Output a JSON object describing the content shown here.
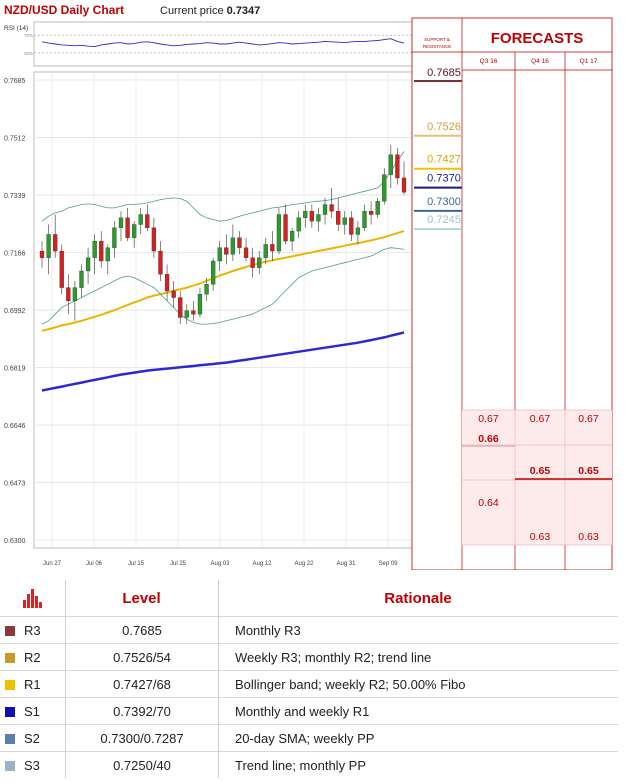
{
  "header": {
    "chart_title": "NZD/USD Daily Chart",
    "current_price_label": "Current price",
    "current_price_value": "0.7347",
    "rsi_label": "RSI (14)",
    "rsi_levels": [
      "70%",
      "30%"
    ]
  },
  "side_panel": {
    "sr_title_line1": "SUPPORT &",
    "sr_title_line2": "RESISTANCE",
    "forecasts_title": "FORECASTS",
    "columns": [
      "Q3 16",
      "Q4 16",
      "Q1 17"
    ],
    "sr_levels": [
      {
        "value": 0.7685,
        "label": "0.7685",
        "color": "#7b2e36",
        "text_color": "#5a1420"
      },
      {
        "value": 0.7526,
        "label": "0.7526",
        "color": "#e8c070",
        "text_color": "#d4a02a"
      },
      {
        "value": 0.7427,
        "label": "0.7427",
        "color": "#f2c000",
        "text_color": "#d8a800"
      },
      {
        "value": 0.737,
        "label": "0.7370",
        "color": "#1a1a8c",
        "text_color": "#1a1a8c"
      },
      {
        "value": 0.73,
        "label": "0.7300",
        "color": "#3a6a9a",
        "text_color": "#3a6a9a"
      },
      {
        "value": 0.7245,
        "label": "0.7245",
        "color": "#b0d4d8",
        "text_color": "#9ac4c8"
      }
    ],
    "forecasts": [
      {
        "column": 0,
        "values": [
          {
            "value": 0.67,
            "label": "0.67",
            "bold": false
          },
          {
            "value": 0.66,
            "label": "0.66",
            "bold": true
          },
          {
            "value": 0.64,
            "label": "0.64",
            "bold": false
          }
        ]
      },
      {
        "column": 1,
        "values": [
          {
            "value": 0.67,
            "label": "0.67",
            "bold": false
          },
          {
            "value": 0.65,
            "label": "0.65",
            "bold": true
          },
          {
            "value": 0.63,
            "label": "0.63",
            "bold": false
          }
        ]
      },
      {
        "column": 2,
        "values": [
          {
            "value": 0.67,
            "label": "0.67",
            "bold": false
          },
          {
            "value": 0.65,
            "label": "0.65",
            "bold": true
          },
          {
            "value": 0.63,
            "label": "0.63",
            "bold": false
          }
        ]
      }
    ]
  },
  "chart_data": {
    "type": "candlestick",
    "title": "NZD/USD Daily Chart",
    "y_ticks": [
      "0.7685",
      "0.7512",
      "0.7339",
      "0.7166",
      "0.6992",
      "0.6819",
      "0.6646",
      "0.6473",
      "0.6300"
    ],
    "ylim": [
      0.63,
      0.7685
    ],
    "x_ticks": [
      "Jun 27",
      "Jul 06",
      "Jul 15",
      "Jul 25",
      "Aug 03",
      "Aug 12",
      "Aug 22",
      "Aug 31",
      "Sep 09"
    ],
    "grid": true,
    "candles": [
      [
        0.717,
        0.72,
        0.712,
        0.715
      ],
      [
        0.715,
        0.725,
        0.71,
        0.722
      ],
      [
        0.722,
        0.728,
        0.715,
        0.717
      ],
      [
        0.717,
        0.719,
        0.704,
        0.706
      ],
      [
        0.706,
        0.71,
        0.698,
        0.702
      ],
      [
        0.702,
        0.708,
        0.696,
        0.706
      ],
      [
        0.706,
        0.713,
        0.703,
        0.711
      ],
      [
        0.711,
        0.718,
        0.707,
        0.715
      ],
      [
        0.715,
        0.722,
        0.71,
        0.72
      ],
      [
        0.72,
        0.723,
        0.712,
        0.714
      ],
      [
        0.714,
        0.719,
        0.71,
        0.718
      ],
      [
        0.718,
        0.726,
        0.715,
        0.724
      ],
      [
        0.724,
        0.729,
        0.72,
        0.727
      ],
      [
        0.727,
        0.73,
        0.72,
        0.721
      ],
      [
        0.721,
        0.726,
        0.718,
        0.725
      ],
      [
        0.725,
        0.73,
        0.722,
        0.728
      ],
      [
        0.728,
        0.731,
        0.723,
        0.724
      ],
      [
        0.724,
        0.727,
        0.715,
        0.717
      ],
      [
        0.717,
        0.72,
        0.708,
        0.71
      ],
      [
        0.71,
        0.713,
        0.702,
        0.705
      ],
      [
        0.705,
        0.708,
        0.7,
        0.703
      ],
      [
        0.703,
        0.705,
        0.695,
        0.697
      ],
      [
        0.697,
        0.701,
        0.695,
        0.699
      ],
      [
        0.699,
        0.702,
        0.696,
        0.698
      ],
      [
        0.698,
        0.706,
        0.697,
        0.704
      ],
      [
        0.704,
        0.709,
        0.702,
        0.707
      ],
      [
        0.707,
        0.715,
        0.705,
        0.714
      ],
      [
        0.714,
        0.72,
        0.711,
        0.718
      ],
      [
        0.718,
        0.722,
        0.713,
        0.716
      ],
      [
        0.716,
        0.725,
        0.714,
        0.721
      ],
      [
        0.721,
        0.723,
        0.716,
        0.718
      ],
      [
        0.718,
        0.721,
        0.714,
        0.715
      ],
      [
        0.715,
        0.718,
        0.709,
        0.712
      ],
      [
        0.712,
        0.717,
        0.71,
        0.715
      ],
      [
        0.715,
        0.721,
        0.713,
        0.719
      ],
      [
        0.719,
        0.723,
        0.714,
        0.717
      ],
      [
        0.717,
        0.73,
        0.716,
        0.728
      ],
      [
        0.728,
        0.731,
        0.719,
        0.72
      ],
      [
        0.72,
        0.724,
        0.717,
        0.723
      ],
      [
        0.723,
        0.729,
        0.721,
        0.727
      ],
      [
        0.727,
        0.731,
        0.724,
        0.729
      ],
      [
        0.729,
        0.731,
        0.724,
        0.726
      ],
      [
        0.726,
        0.73,
        0.723,
        0.728
      ],
      [
        0.728,
        0.733,
        0.725,
        0.731
      ],
      [
        0.731,
        0.736,
        0.727,
        0.729
      ],
      [
        0.729,
        0.733,
        0.723,
        0.725
      ],
      [
        0.725,
        0.729,
        0.722,
        0.727
      ],
      [
        0.727,
        0.729,
        0.72,
        0.722
      ],
      [
        0.722,
        0.726,
        0.719,
        0.724
      ],
      [
        0.724,
        0.731,
        0.723,
        0.729
      ],
      [
        0.729,
        0.732,
        0.725,
        0.728
      ],
      [
        0.728,
        0.733,
        0.727,
        0.732
      ],
      [
        0.732,
        0.742,
        0.731,
        0.74
      ],
      [
        0.74,
        0.749,
        0.736,
        0.746
      ],
      [
        0.746,
        0.748,
        0.737,
        0.739
      ],
      [
        0.739,
        0.744,
        0.734,
        0.7347
      ]
    ],
    "series": [
      {
        "type": "line",
        "color": "#f0b400",
        "values": [
          0.693,
          0.6935,
          0.694,
          0.6946,
          0.695,
          0.6955,
          0.696,
          0.6966,
          0.6972,
          0.6978,
          0.6985,
          0.6992,
          0.7,
          0.7008,
          0.7015,
          0.7022,
          0.703,
          0.7036,
          0.704,
          0.7045,
          0.705,
          0.7055,
          0.706,
          0.7066,
          0.7072,
          0.708,
          0.7088,
          0.7096,
          0.7103,
          0.711,
          0.7116,
          0.7122,
          0.7128,
          0.7133,
          0.7138,
          0.7142,
          0.7146,
          0.715,
          0.7154,
          0.7158,
          0.7162,
          0.7166,
          0.717,
          0.7174,
          0.7178,
          0.7182,
          0.7186,
          0.719,
          0.7194,
          0.7198,
          0.7202,
          0.7207,
          0.7212,
          0.7218,
          0.7224,
          0.723
        ]
      },
      {
        "type": "line",
        "color": "#2a2ad0",
        "values": [
          0.675,
          0.6754,
          0.6758,
          0.6762,
          0.6766,
          0.677,
          0.6774,
          0.6778,
          0.6782,
          0.6786,
          0.679,
          0.6794,
          0.6798,
          0.6801,
          0.6804,
          0.6807,
          0.681,
          0.6812,
          0.6814,
          0.6816,
          0.6818,
          0.682,
          0.6822,
          0.6824,
          0.6826,
          0.6828,
          0.683,
          0.6832,
          0.6834,
          0.6837,
          0.684,
          0.6843,
          0.6846,
          0.6849,
          0.6852,
          0.6855,
          0.6858,
          0.6861,
          0.6864,
          0.6867,
          0.687,
          0.6873,
          0.6876,
          0.6879,
          0.6882,
          0.6885,
          0.6888,
          0.6891,
          0.6894,
          0.6898,
          0.6902,
          0.6906,
          0.691,
          0.6915,
          0.692,
          0.6925
        ]
      },
      {
        "type": "line",
        "color": "#4a9a9a",
        "values": [
          0.726,
          0.7275,
          0.7285,
          0.729,
          0.73,
          0.7305,
          0.731,
          0.7312,
          0.731,
          0.7305,
          0.73,
          0.73,
          0.7305,
          0.731,
          0.731,
          0.7312,
          0.7315,
          0.732,
          0.7325,
          0.7328,
          0.733,
          0.7328,
          0.732,
          0.73,
          0.728,
          0.727,
          0.7265,
          0.726,
          0.7262,
          0.7268,
          0.7275,
          0.728,
          0.7285,
          0.729,
          0.7295,
          0.73,
          0.7302,
          0.7305,
          0.731,
          0.7312,
          0.7315,
          0.7318,
          0.732,
          0.7322,
          0.7325,
          0.733,
          0.7335,
          0.734,
          0.7345,
          0.735,
          0.7355,
          0.736,
          0.738,
          0.741,
          0.744,
          0.747
        ]
      },
      {
        "type": "line",
        "color": "#4a9a9a",
        "values": [
          0.695,
          0.696,
          0.698,
          0.7,
          0.701,
          0.702,
          0.703,
          0.704,
          0.705,
          0.706,
          0.707,
          0.708,
          0.709,
          0.7095,
          0.709,
          0.708,
          0.707,
          0.706,
          0.704,
          0.702,
          0.7,
          0.698,
          0.6965,
          0.6955,
          0.695,
          0.695,
          0.6952,
          0.6955,
          0.696,
          0.6965,
          0.697,
          0.6975,
          0.698,
          0.699,
          0.7,
          0.701,
          0.703,
          0.705,
          0.707,
          0.709,
          0.71,
          0.711,
          0.7115,
          0.712,
          0.7125,
          0.713,
          0.7135,
          0.714,
          0.7145,
          0.715,
          0.7155,
          0.7165,
          0.7175,
          0.718,
          0.7178,
          0.7175
        ]
      }
    ],
    "rsi": [
      55,
      52,
      50,
      48,
      47,
      46,
      47,
      45,
      44,
      48,
      50,
      52,
      53,
      50,
      51,
      54,
      55,
      53,
      50,
      48,
      46,
      47,
      49,
      50,
      51,
      53,
      52,
      50,
      50,
      52,
      54,
      52,
      50,
      48,
      49,
      51,
      53,
      52,
      50,
      51,
      52,
      53,
      54,
      56,
      55,
      54,
      53,
      55,
      56,
      56,
      57,
      58,
      60,
      62,
      56,
      52
    ]
  },
  "levels_table": {
    "header": {
      "level": "Level",
      "rationale": "Rationale"
    },
    "rows": [
      {
        "name": "R3",
        "color": "#8b3a3a",
        "level": "0.7685",
        "rationale": "Monthly R3"
      },
      {
        "name": "R2",
        "color": "#c89a2a",
        "level": "0.7526/54",
        "rationale": "Weekly R3; monthly  R2; trend line"
      },
      {
        "name": "R1",
        "color": "#f2c000",
        "level": "0.7427/68",
        "rationale": "Bollinger band; weekly R2; 50.00% Fibo"
      },
      {
        "name": "S1",
        "color": "#1010b0",
        "level": "0.7392/70",
        "rationale": "Monthly and weekly R1"
      },
      {
        "name": "S2",
        "color": "#5a80aa",
        "level": "0.7300/0.7287",
        "rationale": "20-day SMA; weekly PP"
      },
      {
        "name": "S3",
        "color": "#9ab4c4",
        "level": "0.7250/40",
        "rationale": "Trend line; monthly PP"
      }
    ]
  }
}
